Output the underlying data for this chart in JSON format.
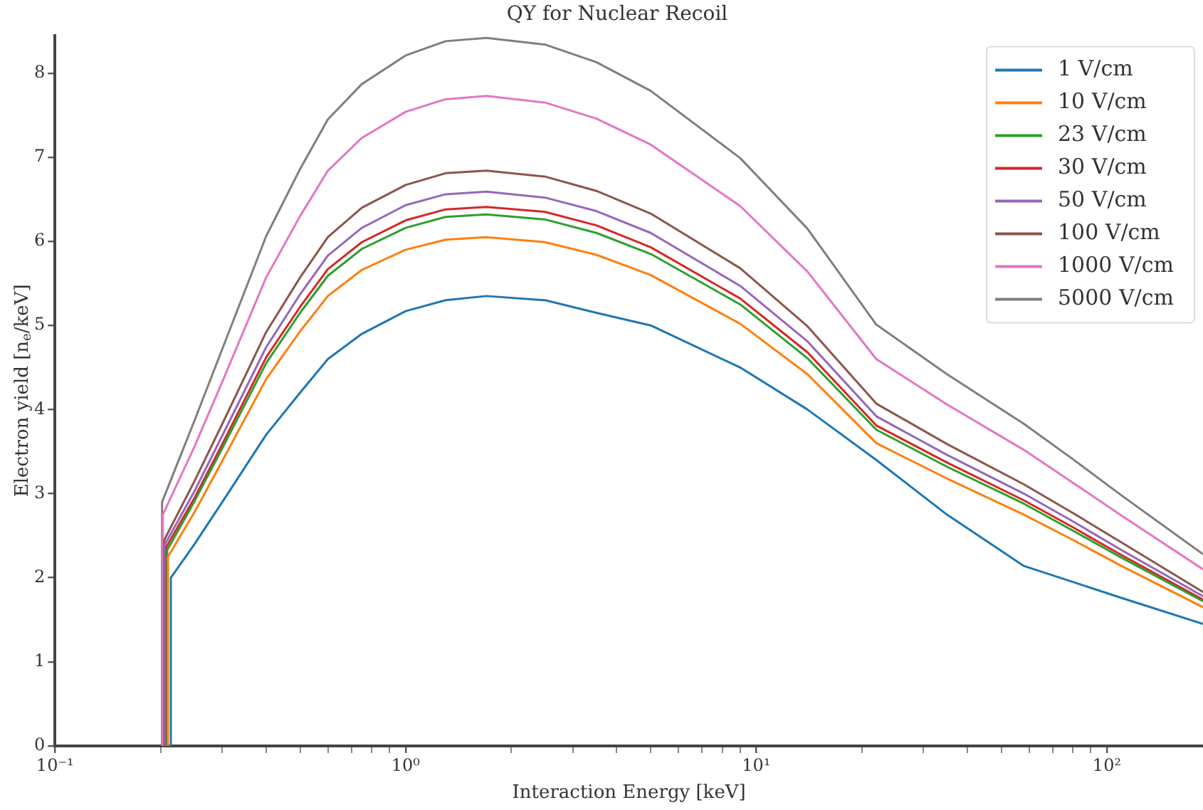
{
  "chart_data": {
    "type": "line",
    "title": "QY for Nuclear Recoil",
    "xlabel": "Interaction Energy [keV]",
    "ylabel": "Electron yield [n$_{e}$/keV]",
    "log": "x",
    "xlim": [
      0.1,
      188
    ],
    "ylim": [
      0,
      8.45
    ],
    "xticks": [
      {
        "value": 0.1,
        "label": "10⁻¹"
      },
      {
        "value": 0.2,
        "label": null
      },
      {
        "value": 0.3,
        "label": null
      },
      {
        "value": 0.4,
        "label": null
      },
      {
        "value": 0.5,
        "label": null
      },
      {
        "value": 0.6,
        "label": null
      },
      {
        "value": 0.7,
        "label": null
      },
      {
        "value": 0.8,
        "label": null
      },
      {
        "value": 0.9,
        "label": null
      },
      {
        "value": 1,
        "label": "10⁰"
      },
      {
        "value": 2,
        "label": null
      },
      {
        "value": 3,
        "label": null
      },
      {
        "value": 4,
        "label": null
      },
      {
        "value": 5,
        "label": null
      },
      {
        "value": 6,
        "label": null
      },
      {
        "value": 7,
        "label": null
      },
      {
        "value": 8,
        "label": null
      },
      {
        "value": 9,
        "label": null
      },
      {
        "value": 10,
        "label": "10¹"
      },
      {
        "value": 20,
        "label": null
      },
      {
        "value": 30,
        "label": null
      },
      {
        "value": 40,
        "label": null
      },
      {
        "value": 50,
        "label": null
      },
      {
        "value": 60,
        "label": null
      },
      {
        "value": 70,
        "label": null
      },
      {
        "value": 80,
        "label": null
      },
      {
        "value": 90,
        "label": null
      },
      {
        "value": 100,
        "label": "10²"
      }
    ],
    "yticks": [
      0,
      1,
      2,
      3,
      4,
      5,
      6,
      7,
      8
    ],
    "grid": false,
    "legend": "top right",
    "marker": "none",
    "line_style": "solid",
    "series": [
      {
        "name": "1 V/cm",
        "color": "#1f77b4",
        "x": [
          0.214,
          0.214,
          0.25,
          0.3,
          0.4,
          0.5,
          0.6,
          0.75,
          1,
          1.3,
          1.7,
          2.5,
          3.5,
          5,
          9,
          14,
          22,
          35,
          58,
          80,
          110,
          188
        ],
        "values": [
          0,
          2.0,
          2.4,
          2.9,
          3.7,
          4.2,
          4.6,
          4.9,
          5.17,
          5.3,
          5.35,
          5.3,
          5.15,
          5.0,
          4.5,
          4.0,
          3.4,
          2.75,
          2.14,
          1.95,
          1.76,
          1.45
        ]
      },
      {
        "name": "10 V/cm",
        "color": "#ff7f0e",
        "x": [
          0.21,
          0.21,
          0.25,
          0.3,
          0.4,
          0.5,
          0.6,
          0.75,
          1,
          1.3,
          1.7,
          2.5,
          3.5,
          5,
          9,
          14,
          22,
          35,
          58,
          80,
          110,
          188
        ],
        "values": [
          0,
          2.25,
          2.78,
          3.39,
          4.36,
          4.93,
          5.35,
          5.66,
          5.9,
          6.02,
          6.05,
          5.99,
          5.84,
          5.6,
          5.02,
          4.42,
          3.6,
          3.18,
          2.75,
          2.45,
          2.14,
          1.65
        ]
      },
      {
        "name": "23 V/cm",
        "color": "#2ca02c",
        "x": [
          0.209,
          0.209,
          0.25,
          0.3,
          0.4,
          0.5,
          0.6,
          0.75,
          1,
          1.3,
          1.7,
          2.5,
          3.5,
          5,
          9,
          14,
          22,
          35,
          58,
          80,
          110,
          188
        ],
        "values": [
          0,
          2.33,
          2.91,
          3.54,
          4.55,
          5.15,
          5.59,
          5.91,
          6.16,
          6.29,
          6.32,
          6.26,
          6.1,
          5.85,
          5.25,
          4.61,
          3.76,
          3.32,
          2.88,
          2.56,
          2.24,
          1.72
        ]
      },
      {
        "name": "30 V/cm",
        "color": "#d62728",
        "x": [
          0.208,
          0.208,
          0.25,
          0.3,
          0.4,
          0.5,
          0.6,
          0.75,
          1,
          1.3,
          1.7,
          2.5,
          3.5,
          5,
          9,
          14,
          22,
          35,
          58,
          80,
          110,
          188
        ],
        "values": [
          0,
          2.37,
          2.95,
          3.59,
          4.62,
          5.22,
          5.67,
          5.99,
          6.25,
          6.38,
          6.41,
          6.35,
          6.19,
          5.93,
          5.32,
          4.68,
          3.81,
          3.37,
          2.92,
          2.6,
          2.27,
          1.74
        ]
      },
      {
        "name": "50 V/cm",
        "color": "#9467bd",
        "x": [
          0.206,
          0.206,
          0.25,
          0.3,
          0.4,
          0.5,
          0.6,
          0.75,
          1,
          1.3,
          1.7,
          2.5,
          3.5,
          5,
          9,
          14,
          22,
          35,
          58,
          80,
          110,
          188
        ],
        "values": [
          0,
          2.4,
          3.03,
          3.69,
          4.74,
          5.37,
          5.83,
          6.16,
          6.43,
          6.56,
          6.59,
          6.52,
          6.36,
          6.1,
          5.47,
          4.81,
          3.92,
          3.46,
          3.0,
          2.67,
          2.33,
          1.78
        ]
      },
      {
        "name": "100 V/cm",
        "color": "#8c564b",
        "x": [
          0.205,
          0.205,
          0.25,
          0.3,
          0.4,
          0.5,
          0.6,
          0.75,
          1,
          1.3,
          1.7,
          2.5,
          3.5,
          5,
          9,
          14,
          22,
          35,
          58,
          80,
          110,
          188
        ],
        "values": [
          0,
          2.45,
          3.15,
          3.83,
          4.92,
          5.57,
          6.05,
          6.4,
          6.67,
          6.81,
          6.84,
          6.77,
          6.6,
          6.33,
          5.68,
          4.99,
          4.07,
          3.59,
          3.11,
          2.77,
          2.42,
          1.83
        ]
      },
      {
        "name": "1000 V/cm",
        "color": "#e377c2",
        "x": [
          0.203,
          0.203,
          0.25,
          0.3,
          0.4,
          0.5,
          0.6,
          0.75,
          1,
          1.3,
          1.7,
          2.5,
          3.5,
          5,
          9,
          14,
          22,
          35,
          58,
          80,
          110,
          188
        ],
        "values": [
          0,
          2.75,
          3.56,
          4.33,
          5.57,
          6.3,
          6.84,
          7.23,
          7.54,
          7.69,
          7.73,
          7.65,
          7.46,
          7.15,
          6.42,
          5.64,
          4.6,
          4.06,
          3.52,
          3.13,
          2.74,
          2.1
        ]
      },
      {
        "name": "5000 V/cm",
        "color": "#7f7f7f",
        "x": [
          0.202,
          0.202,
          0.25,
          0.3,
          0.4,
          0.5,
          0.6,
          0.75,
          1,
          1.3,
          1.7,
          2.5,
          3.5,
          5,
          9,
          14,
          22,
          35,
          58,
          80,
          110,
          188
        ],
        "values": [
          0,
          2.9,
          3.87,
          4.72,
          6.06,
          6.86,
          7.45,
          7.87,
          8.21,
          8.38,
          8.42,
          8.34,
          8.13,
          7.79,
          6.99,
          6.15,
          5.01,
          4.42,
          3.83,
          3.41,
          2.98,
          2.28
        ]
      }
    ]
  }
}
